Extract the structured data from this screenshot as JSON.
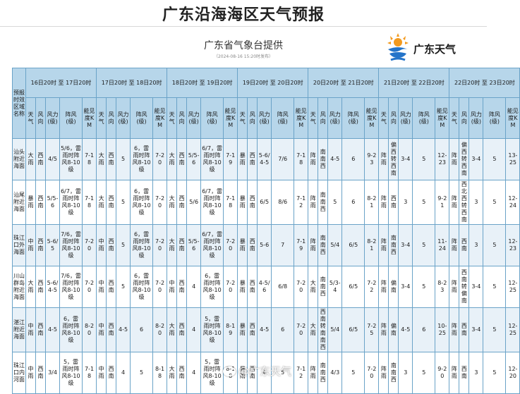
{
  "title": "广东沿海海区天气预报",
  "provider": "广东省气象台提供",
  "publish_time": "（2024-08-16 15:20时发布）",
  "logo": {
    "text": "广东天气",
    "icon": "sun-cloud-wave-icon",
    "colors": {
      "sun": "#f29a1f",
      "wave": "#2474c9"
    }
  },
  "colors": {
    "header_bg": "#b7d6ea",
    "row_alt": "#e8f1f8",
    "border": "#6aa3c8"
  },
  "table": {
    "corner": "预报时效区域名称",
    "periods": [
      "16日20时 至 17日20时",
      "17日20时 至 18日20时",
      "18日20时 至 19日20时",
      "19日20时 至 20日20时",
      "20日20时 至 21日20时",
      "21日20时 至 22日20时",
      "22日20时 至 23日20时"
    ],
    "columns": [
      "天气",
      "风向",
      "风力(级)",
      "阵风(级)",
      "能见度KM"
    ],
    "rows": [
      {
        "region": "汕头附近海面",
        "cells": [
          [
            "大雨",
            "西南",
            "4/5",
            "5/6，雷雨时阵风8-10级",
            "7-18"
          ],
          [
            "大雨",
            "西南",
            "5",
            "6，雷雨时阵风8-10级",
            "7-20"
          ],
          [
            "大雨",
            "西南",
            "5/5-6",
            "6/7，雷雨时阵风8-10级",
            "7-19"
          ],
          [
            "暴雨",
            "西南",
            "5-6/4-5",
            "7/6",
            "7-18"
          ],
          [
            "阵雨",
            "南南西",
            "4-5",
            "6",
            "9-23"
          ],
          [
            "阵雨",
            "偏西转西南",
            "3-4",
            "5",
            "12-23"
          ],
          [
            "阵雨",
            "偏西转西南",
            "3-4",
            "5",
            "13-25"
          ]
        ]
      },
      {
        "region": "汕尾附近海面",
        "cells": [
          [
            "暴雨",
            "西南",
            "5/5-6",
            "6/7，雷雨时阵风8-10级",
            "7-18"
          ],
          [
            "大雨",
            "西南",
            "5",
            "6，雷雨时阵风8-10级",
            "7-20"
          ],
          [
            "大雨",
            "西南",
            "5/6",
            "6/7，雷雨时阵风8-10级",
            "7-18"
          ],
          [
            "暴雨",
            "西南",
            "6/5",
            "8/6",
            "7-12"
          ],
          [
            "阵雨",
            "南南西",
            "5",
            "6",
            "8-21"
          ],
          [
            "阵雨",
            "西南",
            "3",
            "5",
            "9-21"
          ],
          [
            "阵雨",
            "西北西转西南",
            "3",
            "5",
            "12-24"
          ]
        ]
      },
      {
        "region": "珠江口外海面",
        "cells": [
          [
            "中雨",
            "西南",
            "5-6/5",
            "7/6，雷雨时阵风8-10级",
            "7-20"
          ],
          [
            "中雨",
            "西南",
            "5",
            "6，雷雨时阵风8-10级",
            "7-20"
          ],
          [
            "大雨",
            "西南",
            "5/5-6",
            "6/7，雷雨时阵风8-10级",
            "7-20"
          ],
          [
            "暴雨",
            "西南",
            "5-6",
            "7",
            "7-19"
          ],
          [
            "阵雨",
            "南南西",
            "5/4",
            "6/5",
            "8-21"
          ],
          [
            "阵雨",
            "南南西",
            "3-4",
            "5",
            "11-24"
          ],
          [
            "阵雨",
            "西南",
            "3",
            "5",
            "12-23"
          ]
        ]
      },
      {
        "region": "川山群岛附近海面",
        "cells": [
          [
            "大雨",
            "西南",
            "5-6/4-5",
            "7/6，雷雨时阵风8-10级",
            "7-20"
          ],
          [
            "中雨",
            "西南",
            "5",
            "6，雷雨时阵风8-10级",
            "7-20"
          ],
          [
            "中雨",
            "西南",
            "4",
            "6，雷雨时阵风8-10级",
            "7-20"
          ],
          [
            "暴雨",
            "西南",
            "4-5/6",
            "6/8",
            "7-20"
          ],
          [
            "大雨",
            "南南西",
            "5/3-4",
            "6/5",
            "7-22"
          ],
          [
            "阵雨",
            "偏南",
            "3-4",
            "5",
            "8-23"
          ],
          [
            "阵雨",
            "西南转偏南",
            "3-4",
            "5",
            "12-25"
          ]
        ]
      },
      {
        "region": "湛江附近海面",
        "cells": [
          [
            "中雨",
            "西南",
            "4-5",
            "6，雷雨时阵风8-10级",
            "8-20"
          ],
          [
            "中雨",
            "西南",
            "4-5",
            "6",
            "8-20"
          ],
          [
            "大雨",
            "西南",
            "4",
            "5，雷雨时阵风8-10级",
            "8-19"
          ],
          [
            "暴雨",
            "西南",
            "4-5",
            "6",
            "7-20"
          ],
          [
            "大雨",
            "西南转南南西",
            "5/4",
            "6/5",
            "7-25"
          ],
          [
            "阵雨",
            "偏南",
            "4-5",
            "6",
            "10-25"
          ],
          [
            "阵雨",
            "西南",
            "3-4",
            "5",
            "12-25"
          ]
        ]
      },
      {
        "region": "珠江口内河面",
        "cells": [
          [
            "中雨",
            "西南",
            "3/4",
            "5，雷雨时阵风8-10级",
            "7-18"
          ],
          [
            "中雨",
            "西南",
            "4",
            "5",
            "8-18"
          ],
          [
            "大雨",
            "西南",
            "4",
            "5，雷雨时阵风8-10级",
            "8-18"
          ],
          [
            "暴雨",
            "西南",
            "4",
            "5",
            "7-12"
          ],
          [
            "阵雨",
            "南南西",
            "4/3",
            "5",
            "7-20"
          ],
          [
            "阵雨",
            "南南西",
            "3",
            "5",
            "9-20"
          ],
          [
            "阵雨",
            "西南",
            "3",
            "5",
            "12-20"
          ]
        ]
      }
    ]
  },
  "watermark": "@广东天气"
}
